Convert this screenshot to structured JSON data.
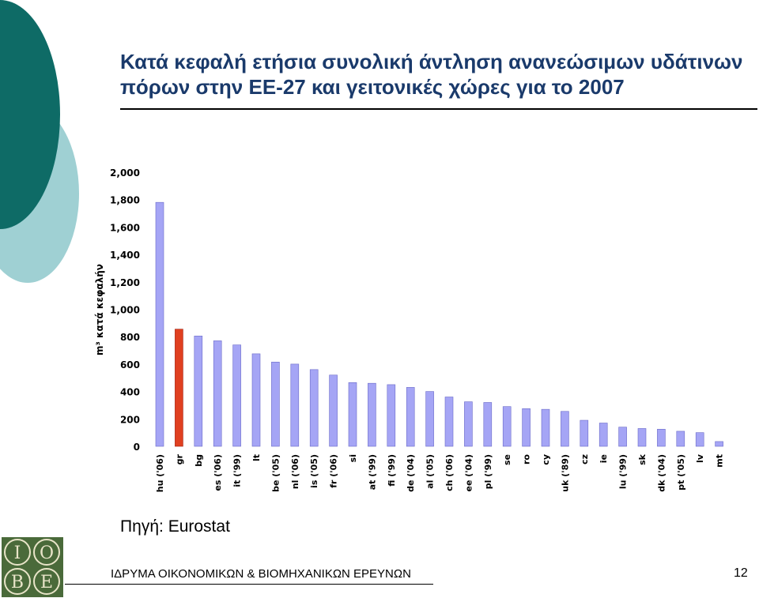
{
  "slide": {
    "title_line1": "Κατά κεφαλή ετήσια συνολική άντληση ανανεώσιμων υδάτινων",
    "title_line2": "πόρων στην ΕΕ-27 και γειτονικές χώρες για το 2007",
    "source": "Πηγή: Eurostat",
    "footer_org": "ΙΔΡΥΜΑ ΟΙΚΟΝΟΜΙΚΩΝ & ΒΙΟΜΗΧΑΝΙΚΩΝ ΕΡΕΥΝΩΝ",
    "page_number": "12",
    "logo_letters": [
      "Ι",
      "Ο",
      "Β",
      "Ε"
    ]
  },
  "colors": {
    "title": "#1a3a6b",
    "bar": "#a5a5f5",
    "bar_stroke": "#6a6ac8",
    "highlight_bar": "#e04020",
    "deco_dark": "#0e6b66",
    "deco_light": "#9fd0d3",
    "logo_bg": "#4a6a3a"
  },
  "chart_data": {
    "type": "bar",
    "ylabel": "m³ κατά κεφαλήν",
    "ylim": [
      0,
      2000
    ],
    "yticks": [
      "0",
      "200",
      "400",
      "600",
      "800",
      "1,000",
      "1,200",
      "1,400",
      "1,600",
      "1,800",
      "2,000"
    ],
    "ytick_values": [
      0,
      200,
      400,
      600,
      800,
      1000,
      1200,
      1400,
      1600,
      1800,
      2000
    ],
    "highlight": "gr",
    "categories": [
      "hu ('06)",
      "gr",
      "bg",
      "es ('06)",
      "it ('99)",
      "lt",
      "be ('05)",
      "nl ('06)",
      "is ('05)",
      "fr ('06)",
      "si",
      "at ('99)",
      "fi ('99)",
      "de ('04)",
      "al ('05)",
      "ch ('06)",
      "ee ('04)",
      "pl ('99)",
      "se",
      "ro",
      "cy",
      "uk ('89)",
      "cz",
      "ie",
      "lu ('99)",
      "sk",
      "dk ('04)",
      "pt ('05)",
      "lv",
      "mt"
    ],
    "values": [
      1780,
      855,
      805,
      770,
      740,
      675,
      615,
      600,
      560,
      520,
      465,
      460,
      450,
      430,
      400,
      360,
      325,
      320,
      290,
      275,
      270,
      255,
      190,
      170,
      140,
      130,
      125,
      110,
      100,
      35
    ]
  }
}
